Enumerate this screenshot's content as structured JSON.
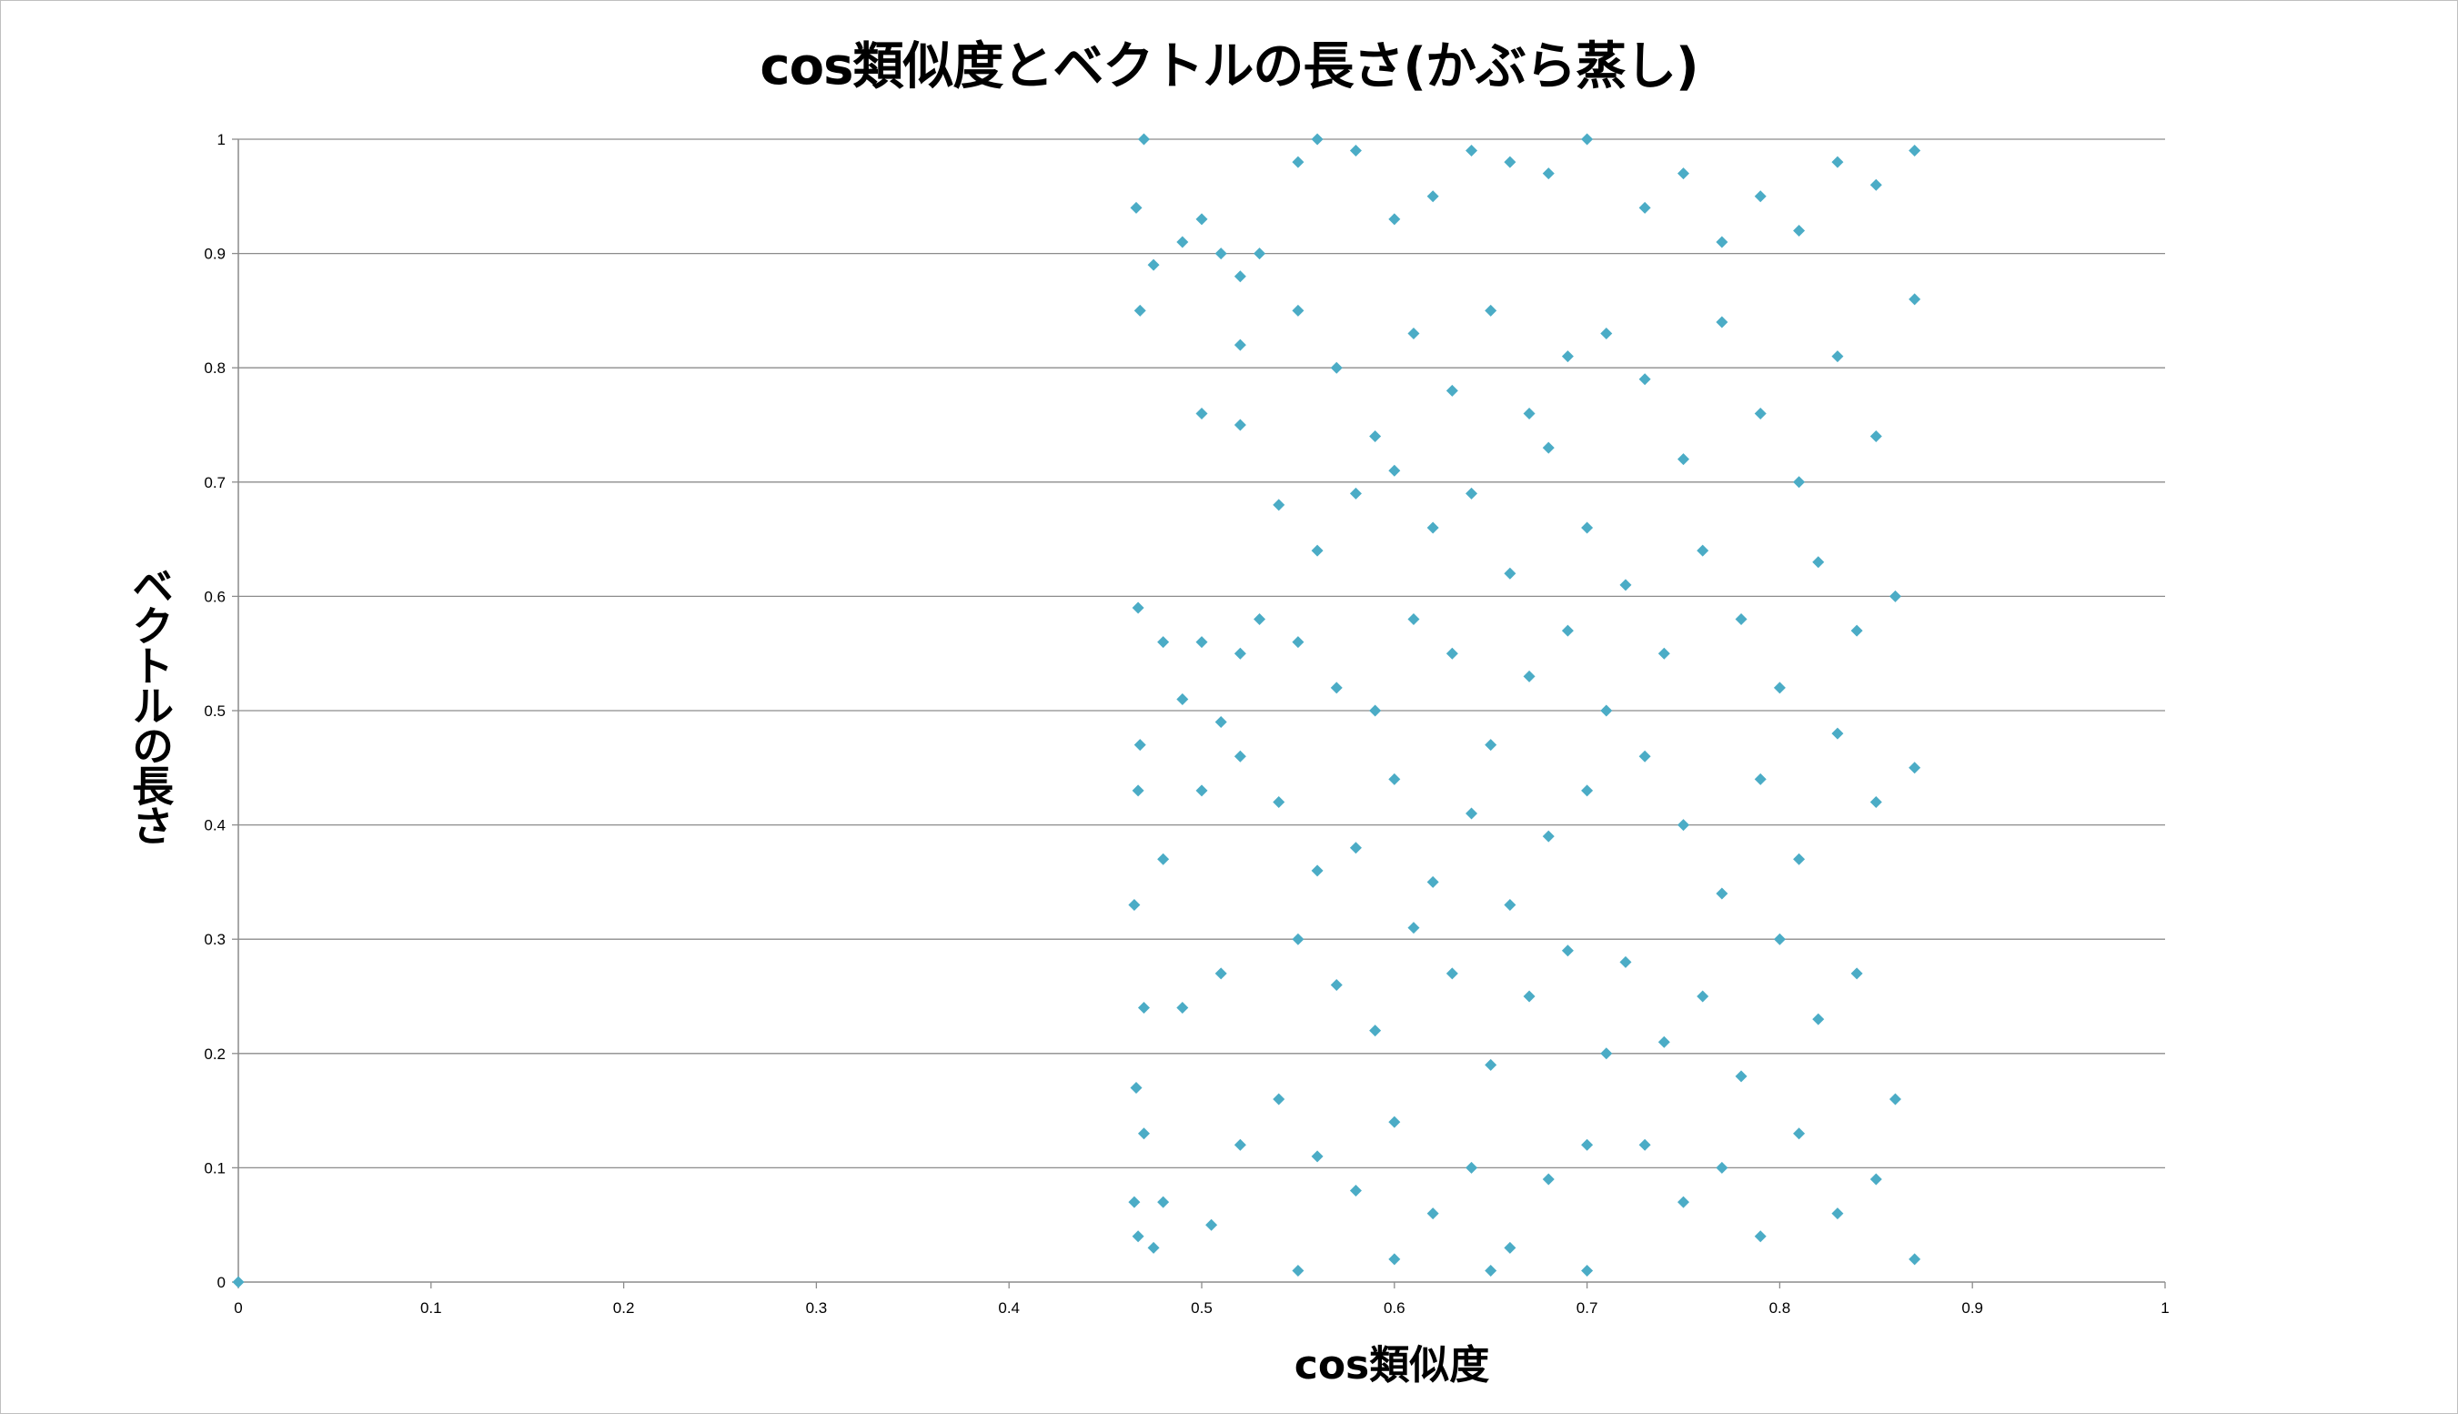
{
  "chart_data": {
    "type": "scatter",
    "title": "cos類似度とベクトルの長さ(かぶら蒸し)",
    "xlabel": "cos類似度",
    "ylabel": "ベクトルの長さ",
    "xlim": [
      0,
      1
    ],
    "ylim": [
      0,
      1
    ],
    "x_ticks": [
      "0",
      "0.1",
      "0.2",
      "0.3",
      "0.4",
      "0.5",
      "0.6",
      "0.7",
      "0.8",
      "0.9",
      "1"
    ],
    "y_ticks": [
      "0",
      "0.1",
      "0.2",
      "0.3",
      "0.4",
      "0.5",
      "0.6",
      "0.7",
      "0.8",
      "0.9",
      "1"
    ],
    "grid": "horizontal",
    "legend": "none",
    "marker": "diamond",
    "color": "#4bacc6",
    "series": [
      {
        "points": [
          [
            0.0,
            0.0
          ],
          [
            0.47,
            1.0
          ],
          [
            0.466,
            0.94
          ],
          [
            0.468,
            0.85
          ],
          [
            0.475,
            0.89
          ],
          [
            0.49,
            0.91
          ],
          [
            0.5,
            0.93
          ],
          [
            0.51,
            0.9
          ],
          [
            0.52,
            0.88
          ],
          [
            0.53,
            0.9
          ],
          [
            0.467,
            0.59
          ],
          [
            0.48,
            0.56
          ],
          [
            0.5,
            0.56
          ],
          [
            0.52,
            0.55
          ],
          [
            0.53,
            0.58
          ],
          [
            0.49,
            0.51
          ],
          [
            0.51,
            0.49
          ],
          [
            0.52,
            0.46
          ],
          [
            0.5,
            0.43
          ],
          [
            0.468,
            0.47
          ],
          [
            0.467,
            0.43
          ],
          [
            0.465,
            0.33
          ],
          [
            0.48,
            0.37
          ],
          [
            0.47,
            0.24
          ],
          [
            0.49,
            0.24
          ],
          [
            0.466,
            0.17
          ],
          [
            0.47,
            0.13
          ],
          [
            0.465,
            0.07
          ],
          [
            0.48,
            0.07
          ],
          [
            0.467,
            0.04
          ],
          [
            0.475,
            0.03
          ],
          [
            0.5,
            0.76
          ],
          [
            0.52,
            0.82
          ],
          [
            0.52,
            0.75
          ],
          [
            0.51,
            0.27
          ],
          [
            0.52,
            0.12
          ],
          [
            0.505,
            0.05
          ],
          [
            0.55,
            0.98
          ],
          [
            0.56,
            1.0
          ],
          [
            0.58,
            0.99
          ],
          [
            0.6,
            0.93
          ],
          [
            0.62,
            0.95
          ],
          [
            0.64,
            0.99
          ],
          [
            0.66,
            0.98
          ],
          [
            0.68,
            0.97
          ],
          [
            0.7,
            1.0
          ],
          [
            0.55,
            0.85
          ],
          [
            0.57,
            0.8
          ],
          [
            0.59,
            0.74
          ],
          [
            0.61,
            0.83
          ],
          [
            0.63,
            0.78
          ],
          [
            0.65,
            0.85
          ],
          [
            0.67,
            0.76
          ],
          [
            0.69,
            0.81
          ],
          [
            0.71,
            0.83
          ],
          [
            0.54,
            0.68
          ],
          [
            0.56,
            0.64
          ],
          [
            0.58,
            0.69
          ],
          [
            0.6,
            0.71
          ],
          [
            0.62,
            0.66
          ],
          [
            0.64,
            0.69
          ],
          [
            0.66,
            0.62
          ],
          [
            0.68,
            0.73
          ],
          [
            0.7,
            0.66
          ],
          [
            0.55,
            0.56
          ],
          [
            0.57,
            0.52
          ],
          [
            0.59,
            0.5
          ],
          [
            0.61,
            0.58
          ],
          [
            0.63,
            0.55
          ],
          [
            0.65,
            0.47
          ],
          [
            0.67,
            0.53
          ],
          [
            0.69,
            0.57
          ],
          [
            0.71,
            0.5
          ],
          [
            0.54,
            0.42
          ],
          [
            0.56,
            0.36
          ],
          [
            0.58,
            0.38
          ],
          [
            0.6,
            0.44
          ],
          [
            0.62,
            0.35
          ],
          [
            0.64,
            0.41
          ],
          [
            0.66,
            0.33
          ],
          [
            0.68,
            0.39
          ],
          [
            0.7,
            0.43
          ],
          [
            0.55,
            0.3
          ],
          [
            0.57,
            0.26
          ],
          [
            0.59,
            0.22
          ],
          [
            0.61,
            0.31
          ],
          [
            0.63,
            0.27
          ],
          [
            0.65,
            0.19
          ],
          [
            0.67,
            0.25
          ],
          [
            0.69,
            0.29
          ],
          [
            0.71,
            0.2
          ],
          [
            0.54,
            0.16
          ],
          [
            0.56,
            0.11
          ],
          [
            0.58,
            0.08
          ],
          [
            0.6,
            0.14
          ],
          [
            0.62,
            0.06
          ],
          [
            0.64,
            0.1
          ],
          [
            0.66,
            0.03
          ],
          [
            0.68,
            0.09
          ],
          [
            0.7,
            0.12
          ],
          [
            0.55,
            0.01
          ],
          [
            0.6,
            0.02
          ],
          [
            0.65,
            0.01
          ],
          [
            0.7,
            0.01
          ],
          [
            0.73,
            0.94
          ],
          [
            0.75,
            0.97
          ],
          [
            0.77,
            0.91
          ],
          [
            0.79,
            0.95
          ],
          [
            0.81,
            0.92
          ],
          [
            0.83,
            0.98
          ],
          [
            0.85,
            0.96
          ],
          [
            0.87,
            0.99
          ],
          [
            0.73,
            0.79
          ],
          [
            0.75,
            0.72
          ],
          [
            0.77,
            0.84
          ],
          [
            0.79,
            0.76
          ],
          [
            0.81,
            0.7
          ],
          [
            0.83,
            0.81
          ],
          [
            0.85,
            0.74
          ],
          [
            0.87,
            0.86
          ],
          [
            0.72,
            0.61
          ],
          [
            0.74,
            0.55
          ],
          [
            0.76,
            0.64
          ],
          [
            0.78,
            0.58
          ],
          [
            0.8,
            0.52
          ],
          [
            0.82,
            0.63
          ],
          [
            0.84,
            0.57
          ],
          [
            0.86,
            0.6
          ],
          [
            0.73,
            0.46
          ],
          [
            0.75,
            0.4
          ],
          [
            0.77,
            0.34
          ],
          [
            0.79,
            0.44
          ],
          [
            0.81,
            0.37
          ],
          [
            0.83,
            0.48
          ],
          [
            0.85,
            0.42
          ],
          [
            0.87,
            0.45
          ],
          [
            0.72,
            0.28
          ],
          [
            0.74,
            0.21
          ],
          [
            0.76,
            0.25
          ],
          [
            0.78,
            0.18
          ],
          [
            0.8,
            0.3
          ],
          [
            0.82,
            0.23
          ],
          [
            0.84,
            0.27
          ],
          [
            0.86,
            0.16
          ],
          [
            0.73,
            0.12
          ],
          [
            0.75,
            0.07
          ],
          [
            0.77,
            0.1
          ],
          [
            0.79,
            0.04
          ],
          [
            0.81,
            0.13
          ],
          [
            0.83,
            0.06
          ],
          [
            0.85,
            0.09
          ],
          [
            0.87,
            0.02
          ]
        ]
      }
    ]
  }
}
